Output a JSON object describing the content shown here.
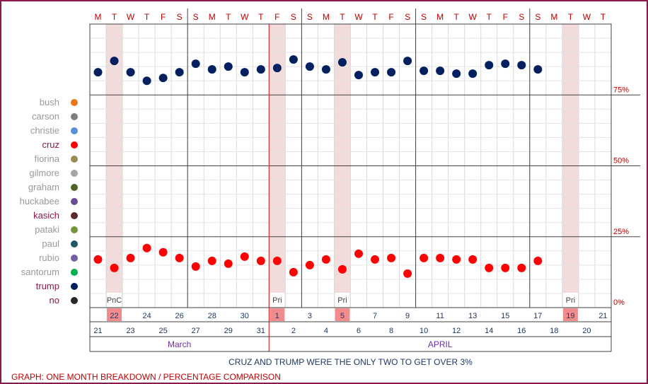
{
  "chart_data": {
    "type": "scatter",
    "day_letters": [
      "M",
      "T",
      "W",
      "T",
      "F",
      "S",
      "S",
      "M",
      "T",
      "W",
      "T",
      "F",
      "S",
      "S",
      "M",
      "T",
      "W",
      "T",
      "F",
      "S",
      "S",
      "M",
      "T",
      "W",
      "T",
      "F",
      "S",
      "S",
      "M",
      "T",
      "W",
      "T"
    ],
    "row1_dates": [
      "",
      "22",
      "24",
      "26",
      "",
      "28",
      "30",
      "",
      "1",
      "3",
      "5",
      "7",
      "9",
      "",
      "11",
      "13",
      "15",
      "17",
      "19",
      "21"
    ],
    "row1_highlighted": [
      "22",
      "1",
      "5",
      "19"
    ],
    "row2_dates": [
      "21",
      "23",
      "25",
      "27",
      "29",
      "31",
      "2",
      "4",
      "6",
      "8",
      "10",
      "12",
      "14",
      "16",
      "18",
      "20"
    ],
    "months": [
      "March",
      "APRIL"
    ],
    "event_labels": [
      {
        "date": "2016-03-22",
        "text": "PnC"
      },
      {
        "date": "2016-04-01",
        "text": "Pri"
      },
      {
        "date": "2016-04-05",
        "text": "Pri"
      },
      {
        "date": "2016-04-19",
        "text": "Pri"
      }
    ],
    "highlight_dates": [
      "2016-03-22",
      "2016-04-01",
      "2016-04-05",
      "2016-04-19"
    ],
    "y_ticks": [
      "0%",
      "25%",
      "50%",
      "75%"
    ],
    "ylim": [
      0,
      100
    ],
    "legend": [
      {
        "name": "bush",
        "color": "#e8761a",
        "highlight": false
      },
      {
        "name": "carson",
        "color": "#7f7f7f",
        "highlight": false
      },
      {
        "name": "christie",
        "color": "#5b8fd6",
        "highlight": false
      },
      {
        "name": "cruz",
        "color": "#ff0000",
        "highlight": true
      },
      {
        "name": "fiorina",
        "color": "#9a8b55",
        "highlight": false
      },
      {
        "name": "gilmore",
        "color": "#a6a6a6",
        "highlight": false
      },
      {
        "name": "graham",
        "color": "#4f6228",
        "highlight": false
      },
      {
        "name": "huckabee",
        "color": "#6a4c93",
        "highlight": false
      },
      {
        "name": "kasich",
        "color": "#5c2a2a",
        "highlight": true
      },
      {
        "name": "pataki",
        "color": "#77933c",
        "highlight": false
      },
      {
        "name": "paul",
        "color": "#215868",
        "highlight": false
      },
      {
        "name": "rubio",
        "color": "#7460a3",
        "highlight": false
      },
      {
        "name": "santorum",
        "color": "#00b050",
        "highlight": false
      },
      {
        "name": "trump",
        "color": "#002060",
        "highlight": true
      },
      {
        "name": "no",
        "color": "#262626",
        "highlight": true
      }
    ],
    "series": [
      {
        "name": "trump",
        "color": "#002060",
        "points": [
          [
            "2016-03-21",
            83
          ],
          [
            "2016-03-22",
            87
          ],
          [
            "2016-03-23",
            83
          ],
          [
            "2016-03-24",
            80
          ],
          [
            "2016-03-25",
            81
          ],
          [
            "2016-03-26",
            83
          ],
          [
            "2016-03-27",
            86
          ],
          [
            "2016-03-28",
            84
          ],
          [
            "2016-03-29",
            85
          ],
          [
            "2016-03-30",
            83
          ],
          [
            "2016-03-31",
            84
          ],
          [
            "2016-04-01",
            84.5
          ],
          [
            "2016-04-02",
            87.5
          ],
          [
            "2016-04-03",
            85
          ],
          [
            "2016-04-04",
            84
          ],
          [
            "2016-04-05",
            86.5
          ],
          [
            "2016-04-06",
            82
          ],
          [
            "2016-04-07",
            83
          ],
          [
            "2016-04-08",
            83
          ],
          [
            "2016-04-09",
            87
          ],
          [
            "2016-04-10",
            83.5
          ],
          [
            "2016-04-11",
            83.5
          ],
          [
            "2016-04-12",
            82.5
          ],
          [
            "2016-04-13",
            82.5
          ],
          [
            "2016-04-14",
            85.5
          ],
          [
            "2016-04-15",
            86
          ],
          [
            "2016-04-16",
            85.5
          ],
          [
            "2016-04-17",
            84
          ]
        ]
      },
      {
        "name": "cruz",
        "color": "#ff0000",
        "points": [
          [
            "2016-03-21",
            17
          ],
          [
            "2016-03-22",
            14
          ],
          [
            "2016-03-23",
            17.5
          ],
          [
            "2016-03-24",
            21
          ],
          [
            "2016-03-25",
            19.5
          ],
          [
            "2016-03-26",
            17.5
          ],
          [
            "2016-03-27",
            14.5
          ],
          [
            "2016-03-28",
            16.5
          ],
          [
            "2016-03-29",
            15.5
          ],
          [
            "2016-03-30",
            18
          ],
          [
            "2016-03-31",
            16.5
          ],
          [
            "2016-04-01",
            16.5
          ],
          [
            "2016-04-02",
            12.5
          ],
          [
            "2016-04-03",
            15
          ],
          [
            "2016-04-04",
            17
          ],
          [
            "2016-04-05",
            13.5
          ],
          [
            "2016-04-06",
            19
          ],
          [
            "2016-04-07",
            17
          ],
          [
            "2016-04-08",
            17.5
          ],
          [
            "2016-04-09",
            12
          ],
          [
            "2016-04-10",
            17.5
          ],
          [
            "2016-04-11",
            17.5
          ],
          [
            "2016-04-12",
            17
          ],
          [
            "2016-04-13",
            17
          ],
          [
            "2016-04-14",
            14
          ],
          [
            "2016-04-15",
            14
          ],
          [
            "2016-04-16",
            14
          ],
          [
            "2016-04-17",
            16.5
          ]
        ]
      }
    ],
    "title": "CRUZ AND TRUMP WERE THE ONLY TWO TO GET OVER 3%",
    "footer": "GRAPH: ONE MONTH BREAKDOWN / PERCENTAGE COMPARISON"
  }
}
